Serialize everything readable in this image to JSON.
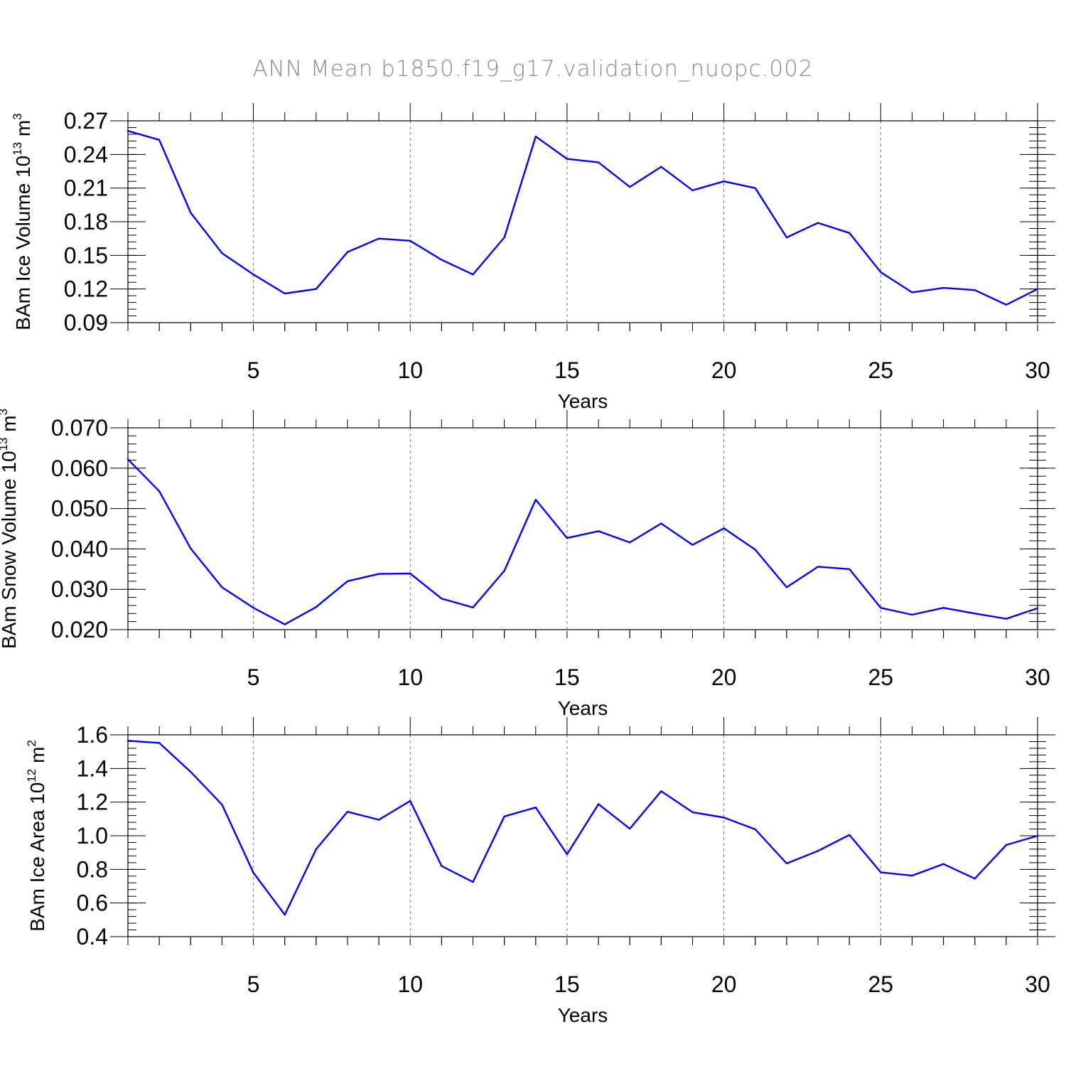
{
  "figure": {
    "title": "ANN Mean b1850.f19_g17.validation_nuopc.002",
    "line_color": "#0000ff"
  },
  "chart_data": [
    {
      "type": "line",
      "id": "ice-volume",
      "title": "",
      "xlabel": "Years",
      "ylabel": {
        "prefix": "BAm Ice Volume 10",
        "exp": "13",
        "unit": " m",
        "unit_exp": "3"
      },
      "xlim": [
        1,
        30
      ],
      "ylim": [
        0.09,
        0.27
      ],
      "xticks": [
        5,
        10,
        15,
        20,
        25,
        30
      ],
      "xtick_labels": [
        "5",
        "10",
        "15",
        "20",
        "25",
        "30"
      ],
      "yticks": [
        0.09,
        0.12,
        0.15,
        0.18,
        0.21,
        0.24,
        0.27
      ],
      "ytick_labels": [
        "0.09",
        "0.12",
        "0.15",
        "0.18",
        "0.21",
        "0.24",
        "0.27"
      ],
      "y_minor_step": 0.006,
      "x": [
        1,
        2,
        3,
        4,
        5,
        6,
        7,
        8,
        9,
        10,
        11,
        12,
        13,
        14,
        15,
        16,
        17,
        18,
        19,
        20,
        21,
        22,
        23,
        24,
        25,
        26,
        27,
        28,
        29,
        30
      ],
      "values": [
        0.261,
        0.253,
        0.188,
        0.152,
        0.133,
        0.116,
        0.12,
        0.153,
        0.165,
        0.163,
        0.146,
        0.133,
        0.166,
        0.256,
        0.236,
        0.233,
        0.211,
        0.229,
        0.208,
        0.216,
        0.21,
        0.166,
        0.179,
        0.17,
        0.135,
        0.117,
        0.121,
        0.119,
        0.106,
        0.12
      ]
    },
    {
      "type": "line",
      "id": "snow-volume",
      "title": "",
      "xlabel": "Years",
      "ylabel": {
        "prefix": "BAm Snow Volume 10",
        "exp": "13",
        "unit": " m",
        "unit_exp": "3"
      },
      "xlim": [
        1,
        30
      ],
      "ylim": [
        0.02,
        0.07
      ],
      "xticks": [
        5,
        10,
        15,
        20,
        25,
        30
      ],
      "xtick_labels": [
        "5",
        "10",
        "15",
        "20",
        "25",
        "30"
      ],
      "yticks": [
        0.02,
        0.03,
        0.04,
        0.05,
        0.06,
        0.07
      ],
      "ytick_labels": [
        "0.020",
        "0.030",
        "0.040",
        "0.050",
        "0.060",
        "0.070"
      ],
      "y_minor_step": 0.002,
      "x": [
        1,
        2,
        3,
        4,
        5,
        6,
        7,
        8,
        9,
        10,
        11,
        12,
        13,
        14,
        15,
        16,
        17,
        18,
        19,
        20,
        21,
        22,
        23,
        24,
        25,
        26,
        27,
        28,
        29,
        30
      ],
      "values": [
        0.0622,
        0.0543,
        0.0401,
        0.0305,
        0.0254,
        0.0213,
        0.0256,
        0.032,
        0.0338,
        0.0339,
        0.0277,
        0.0255,
        0.0346,
        0.0522,
        0.0427,
        0.0444,
        0.0416,
        0.0463,
        0.041,
        0.0451,
        0.0398,
        0.0305,
        0.0356,
        0.035,
        0.0254,
        0.0237,
        0.0254,
        0.024,
        0.0227,
        0.0253
      ]
    },
    {
      "type": "line",
      "id": "ice-area",
      "title": "",
      "xlabel": "Years",
      "ylabel": {
        "prefix": "BAm Ice Area 10",
        "exp": "12",
        "unit": " m",
        "unit_exp": "2"
      },
      "xlim": [
        1,
        30
      ],
      "ylim": [
        0.4,
        1.6
      ],
      "xticks": [
        5,
        10,
        15,
        20,
        25,
        30
      ],
      "xtick_labels": [
        "5",
        "10",
        "15",
        "20",
        "25",
        "30"
      ],
      "yticks": [
        0.4,
        0.6,
        0.8,
        1.0,
        1.2,
        1.4,
        1.6
      ],
      "ytick_labels": [
        "0.4",
        "0.6",
        "0.8",
        "1.0",
        "1.2",
        "1.4",
        "1.6"
      ],
      "y_minor_step": 0.04,
      "x": [
        1,
        2,
        3,
        4,
        5,
        6,
        7,
        8,
        9,
        10,
        11,
        12,
        13,
        14,
        15,
        16,
        17,
        18,
        19,
        20,
        21,
        22,
        23,
        24,
        25,
        26,
        27,
        28,
        29,
        30
      ],
      "values": [
        1.565,
        1.552,
        1.38,
        1.185,
        0.78,
        0.53,
        0.92,
        1.143,
        1.095,
        1.207,
        0.82,
        0.725,
        1.115,
        1.168,
        0.89,
        1.188,
        1.042,
        1.265,
        1.14,
        1.108,
        1.038,
        0.835,
        0.91,
        1.005,
        0.783,
        0.763,
        0.832,
        0.745,
        0.945,
        1.0
      ]
    }
  ]
}
